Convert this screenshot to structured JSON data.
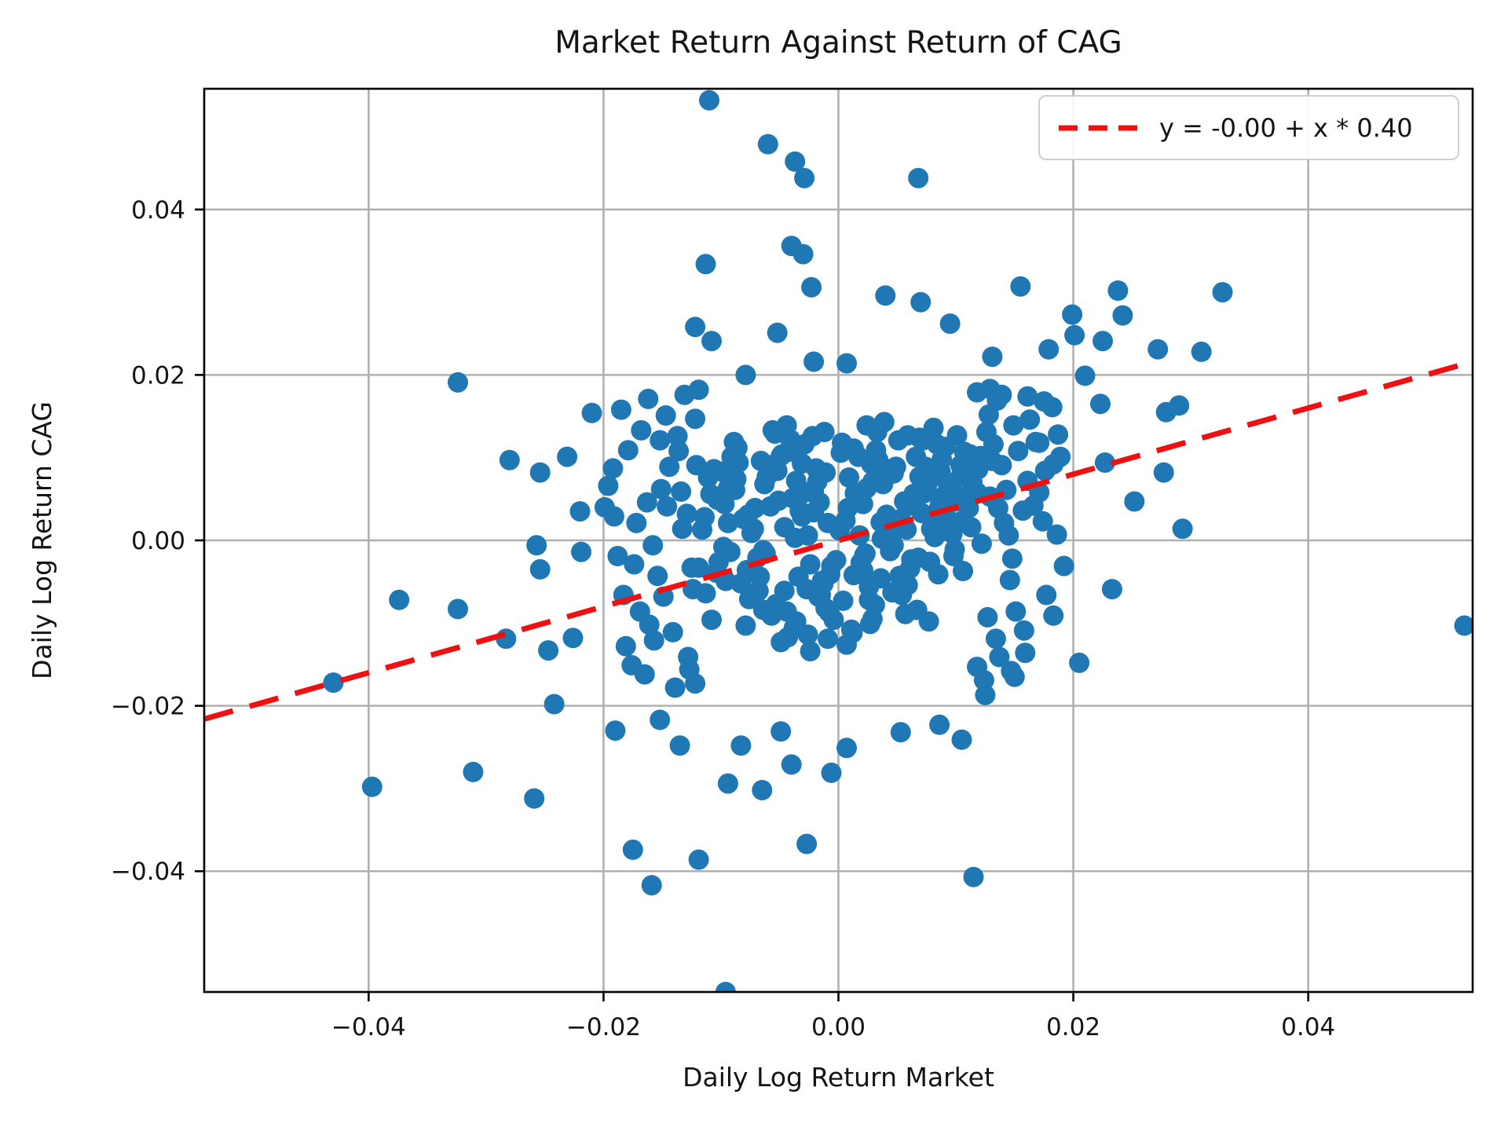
{
  "chart_data": {
    "type": "scatter",
    "title": "Market Return Against Return of CAG",
    "xlabel": "Daily Log Return Market",
    "ylabel": "Daily Log Return CAG",
    "xlim": [
      -0.054,
      0.054
    ],
    "ylim": [
      -0.0546,
      0.0546
    ],
    "grid": true,
    "grid_color": "#b0b0b0",
    "spine_color": "#000000",
    "marker_color": "#1f77b4",
    "x_ticks": {
      "values": [
        -0.04,
        -0.02,
        0.0,
        0.02,
        0.04
      ],
      "labels": [
        "−0.04",
        "−0.02",
        "0.00",
        "0.02",
        "0.04"
      ]
    },
    "y_ticks": {
      "values": [
        0.04,
        0.02,
        0.0,
        -0.02,
        -0.04
      ],
      "labels": [
        "0.04",
        "0.02",
        "0.00",
        "−0.02",
        "−0.04"
      ]
    },
    "legend": {
      "position": "upper right",
      "label": "y = -0.00 + x * 0.40"
    },
    "trendline": {
      "intercept": -0.0,
      "slope": 0.4,
      "color": "#ed1111",
      "style": "dashed"
    },
    "points": [
      [
        -0.011,
        0.0532
      ],
      [
        -0.006,
        0.0479
      ],
      [
        -0.0037,
        0.0458
      ],
      [
        -0.0029,
        0.0438
      ],
      [
        0.0068,
        0.0438
      ],
      [
        -0.004,
        0.0356
      ],
      [
        -0.003,
        0.0346
      ],
      [
        -0.0113,
        0.0334
      ],
      [
        -0.0023,
        0.0306
      ],
      [
        0.004,
        0.0296
      ],
      [
        0.007,
        0.0288
      ],
      [
        0.0155,
        0.0307
      ],
      [
        0.0238,
        0.0302
      ],
      [
        0.0327,
        0.03
      ],
      [
        0.0199,
        0.0273
      ],
      [
        0.0242,
        0.0272
      ],
      [
        -0.0122,
        0.0258
      ],
      [
        -0.0108,
        0.0241
      ],
      [
        -0.0052,
        0.0251
      ],
      [
        0.0095,
        0.0262
      ],
      [
        0.0201,
        0.0248
      ],
      [
        0.0225,
        0.0241
      ],
      [
        0.0179,
        0.0231
      ],
      [
        0.0272,
        0.0231
      ],
      [
        0.0309,
        0.0228
      ],
      [
        -0.0021,
        0.0216
      ],
      [
        0.0007,
        0.0214
      ],
      [
        0.0131,
        0.0222
      ],
      [
        0.021,
        0.0199
      ],
      [
        -0.0324,
        0.0191
      ],
      [
        -0.0079,
        0.02
      ],
      [
        0.0136,
        0.0176
      ],
      [
        0.0161,
        0.0174
      ],
      [
        0.0118,
        0.0179
      ],
      [
        0.0175,
        0.0168
      ],
      [
        0.0223,
        0.0165
      ],
      [
        0.0279,
        0.0155
      ],
      [
        0.029,
        0.0163
      ],
      [
        0.0171,
        0.0118
      ],
      [
        0.0227,
        0.0094
      ],
      [
        0.0277,
        0.0082
      ],
      [
        0.0293,
        0.0014
      ],
      [
        0.0252,
        0.0047
      ],
      [
        0.0233,
        -0.0059
      ],
      [
        0.0205,
        -0.0148
      ],
      [
        0.0183,
        -0.0091
      ],
      [
        0.015,
        -0.0165
      ],
      [
        0.0118,
        -0.0153
      ],
      [
        0.0125,
        -0.0187
      ],
      [
        0.0533,
        -0.0103
      ],
      [
        -0.043,
        -0.0172
      ],
      [
        -0.0397,
        -0.0298
      ],
      [
        -0.0311,
        -0.028
      ],
      [
        -0.0259,
        -0.0312
      ],
      [
        -0.0374,
        -0.0072
      ],
      [
        -0.0324,
        -0.0083
      ],
      [
        -0.0283,
        -0.0119
      ],
      [
        -0.028,
        0.0097
      ],
      [
        -0.0254,
        0.0082
      ],
      [
        -0.0257,
        -0.0006
      ],
      [
        -0.0254,
        -0.0035
      ],
      [
        -0.0242,
        -0.0198
      ],
      [
        -0.0247,
        -0.0133
      ],
      [
        -0.0226,
        -0.0118
      ],
      [
        -0.0219,
        -0.0014
      ],
      [
        -0.022,
        0.0035
      ],
      [
        -0.0199,
        0.004
      ],
      [
        -0.019,
        -0.023
      ],
      [
        -0.021,
        0.0154
      ],
      [
        -0.0231,
        0.0101
      ],
      [
        -0.0175,
        -0.0374
      ],
      [
        -0.0119,
        -0.0386
      ],
      [
        -0.0159,
        -0.0417
      ],
      [
        -0.0096,
        -0.0546
      ],
      [
        -0.0027,
        -0.0367
      ],
      [
        0.0115,
        -0.0407
      ],
      [
        -0.0135,
        -0.0248
      ],
      [
        -0.0094,
        -0.0294
      ],
      [
        -0.0065,
        -0.0302
      ],
      [
        -0.004,
        -0.0271
      ],
      [
        -0.0006,
        -0.0281
      ],
      [
        0.0007,
        -0.0251
      ],
      [
        -0.0083,
        -0.0248
      ],
      [
        -0.0049,
        -0.0231
      ],
      [
        0.0053,
        -0.0232
      ],
      [
        -0.0152,
        -0.0217
      ],
      [
        0.0086,
        -0.0223
      ],
      [
        -0.0122,
        -0.0173
      ],
      [
        -0.0165,
        -0.0162
      ],
      [
        0.0105,
        -0.0241
      ],
      [
        -0.0151,
        0.0062
      ],
      [
        0.0139,
        0.0091
      ],
      [
        -0.0128,
        -0.0141
      ],
      [
        0.0146,
        -0.0048
      ],
      [
        -0.0172,
        0.0021
      ],
      [
        0.0128,
        0.0152
      ],
      [
        -0.0136,
        0.0108
      ],
      [
        0.0157,
        0.0036
      ],
      [
        -0.0183,
        -0.0066
      ],
      [
        0.0134,
        -0.0119
      ],
      [
        -0.0147,
        0.0151
      ],
      [
        0.0168,
        0.0119
      ],
      [
        -0.0161,
        -0.0102
      ],
      [
        0.0143,
        0.0061
      ],
      [
        -0.0129,
        0.0032
      ],
      [
        0.0176,
        0.0084
      ],
      [
        -0.0192,
        0.0087
      ],
      [
        0.0151,
        -0.0086
      ],
      [
        -0.0139,
        -0.0178
      ],
      [
        0.0129,
        0.0183
      ],
      [
        -0.0168,
        0.0133
      ],
      [
        0.0186,
        0.0007
      ],
      [
        -0.0154,
        -0.0043
      ],
      [
        0.0132,
        0.0116
      ],
      [
        -0.0176,
        -0.0151
      ],
      [
        0.0163,
        0.0146
      ],
      [
        -0.0131,
        0.0176
      ],
      [
        0.0148,
        -0.0022
      ],
      [
        -0.0188,
        -0.0019
      ],
      [
        0.0171,
        0.0058
      ],
      [
        -0.0144,
        0.0089
      ],
      [
        0.0137,
        -0.0141
      ],
      [
        -0.0163,
        0.0046
      ],
      [
        0.0182,
        0.0161
      ],
      [
        -0.0149,
        -0.0068
      ],
      [
        0.0126,
        0.0131
      ],
      [
        -0.0179,
        0.0109
      ],
      [
        0.0158,
        -0.0109
      ],
      [
        -0.0133,
        0.0014
      ],
      [
        0.0189,
        0.0101
      ],
      [
        -0.0157,
        -0.0121
      ],
      [
        0.0141,
        0.0021
      ],
      [
        -0.0185,
        0.0158
      ],
      [
        0.0177,
        -0.0066
      ],
      [
        -0.0125,
        -0.0033
      ],
      [
        0.0153,
        0.0108
      ],
      [
        -0.0169,
        -0.0086
      ],
      [
        0.0135,
        0.0169
      ],
      [
        -0.0122,
        0.0147
      ],
      [
        0.0166,
        0.0042
      ],
      [
        -0.0141,
        -0.0111
      ],
      [
        0.0124,
        -0.0169
      ],
      [
        -0.0196,
        0.0066
      ],
      [
        0.0187,
        0.0128
      ],
      [
        -0.0152,
        0.0121
      ],
      [
        0.0145,
        0.0006
      ],
      [
        -0.0134,
        0.0059
      ],
      [
        0.0159,
        -0.0136
      ],
      [
        -0.0174,
        -0.0029
      ],
      [
        0.0131,
        0.0096
      ],
      [
        -0.0127,
        -0.0156
      ],
      [
        0.0174,
        0.0023
      ],
      [
        -0.0162,
        0.0171
      ],
      [
        0.0149,
        0.0139
      ],
      [
        -0.0119,
        0.0182
      ],
      [
        0.0192,
        -0.0031
      ],
      [
        -0.0146,
        0.0041
      ],
      [
        0.0127,
        -0.0093
      ],
      [
        -0.0181,
        -0.0128
      ],
      [
        0.0139,
        0.0176
      ],
      [
        -0.0124,
        -0.0059
      ],
      [
        0.0161,
        0.0072
      ],
      [
        -0.0137,
        0.0126
      ],
      [
        0.0129,
        0.0053
      ],
      [
        -0.0158,
        -0.0006
      ],
      [
        0.0183,
        0.0092
      ],
      [
        -0.0121,
        0.0091
      ],
      [
        0.0147,
        -0.0158
      ],
      [
        -0.0191,
        0.0029
      ],
      [
        0.0136,
        0.0039
      ],
      [
        -0.0021,
        0.0034
      ],
      [
        0.0013,
        -0.0042
      ],
      [
        0.0047,
        0.0081
      ],
      [
        -0.0064,
        -0.0012
      ],
      [
        0.0032,
        0.0109
      ],
      [
        -0.0008,
        -0.0087
      ],
      [
        0.0091,
        0.0036
      ],
      [
        -0.0113,
        -0.0064
      ],
      [
        0.0058,
        0.0013
      ],
      [
        -0.0036,
        0.0072
      ],
      [
        0.0104,
        0.0091
      ],
      [
        -0.0079,
        -0.0103
      ],
      [
        0.0022,
        -0.0018
      ],
      [
        0.0069,
        0.0124
      ],
      [
        -0.0051,
        0.0048
      ],
      [
        0.0007,
        -0.0126
      ],
      [
        -0.0094,
        0.0021
      ],
      [
        0.0118,
        0.0058
      ],
      [
        -0.0027,
        -0.0059
      ],
      [
        0.0043,
        0.0027
      ],
      [
        -0.0066,
        0.0096
      ],
      [
        0.0085,
        -0.0041
      ],
      [
        -0.0012,
        0.0131
      ],
      [
        0.0029,
        -0.0095
      ],
      [
        0.0076,
        0.0069
      ],
      [
        -0.0102,
        -0.0026
      ],
      [
        0.0016,
        0.0052
      ],
      [
        -0.0043,
        -0.0117
      ],
      [
        0.0097,
        0.0008
      ],
      [
        -0.0019,
        0.0087
      ],
      [
        0.0054,
        -0.0066
      ],
      [
        -0.0071,
        0.0039
      ],
      [
        0.0121,
        0.0102
      ],
      [
        -0.0034,
        -0.0044
      ],
      [
        0.0003,
        0.0118
      ],
      [
        0.0062,
        -0.0023
      ],
      [
        -0.0088,
        0.0061
      ],
      [
        0.0039,
        0.0143
      ],
      [
        -0.0057,
        -0.0091
      ],
      [
        0.0109,
        0.0049
      ],
      [
        -0.0006,
        -0.0031
      ],
      [
        0.0084,
        0.0116
      ],
      [
        -0.0116,
        0.0013
      ],
      [
        0.0026,
        -0.0072
      ],
      [
        0.0071,
        0.0033
      ],
      [
        -0.0048,
        0.0104
      ],
      [
        0.0011,
        -0.0108
      ],
      [
        -0.0083,
        -0.0052
      ],
      [
        0.0049,
        0.0089
      ],
      [
        -0.0024,
        -0.0134
      ],
      [
        0.0093,
        0.0024
      ],
      [
        -0.0061,
        0.0077
      ],
      [
        0.0018,
        0.0006
      ],
      [
        0.0106,
        -0.0037
      ],
      [
        -0.0041,
        0.0122
      ],
      [
        0.0067,
        -0.0084
      ],
      [
        -0.0097,
        0.0044
      ],
      [
        0.0034,
        0.0097
      ],
      [
        -0.0014,
        -0.0049
      ],
      [
        0.0081,
        0.0136
      ],
      [
        -0.0069,
        -0.0021
      ],
      [
        0.0024,
        0.0063
      ],
      [
        -0.0108,
        -0.0096
      ],
      [
        0.0052,
        0.0017
      ],
      [
        0.0002,
        0.0106
      ],
      [
        -0.0053,
        -0.0077
      ],
      [
        0.0114,
        0.0071
      ],
      [
        -0.0031,
        0.0029
      ],
      [
        0.0059,
        -0.0054
      ],
      [
        -0.0086,
        0.0112
      ],
      [
        0.0037,
        0.0002
      ],
      [
        -0.0009,
        -0.0119
      ],
      [
        0.0089,
        0.0053
      ],
      [
        -0.0044,
        0.0139
      ],
      [
        0.0021,
        -0.0036
      ],
      [
        -0.0074,
        0.0009
      ],
      [
        0.0101,
        0.0127
      ],
      [
        -0.0017,
        -0.0068
      ],
      [
        0.0063,
        0.0042
      ],
      [
        -0.0099,
        0.0083
      ],
      [
        0.0044,
        -0.0013
      ],
      [
        -0.0028,
        0.0058
      ],
      [
        0.0077,
        -0.0098
      ],
      [
        -0.0056,
        0.0133
      ],
      [
        0.0009,
        0.0076
      ],
      [
        0.0096,
        0.0011
      ],
      [
        -0.0038,
        -0.0106
      ],
      [
        0.0028,
        0.0092
      ],
      [
        -0.0081,
        0.0026
      ],
      [
        0.0051,
        0.0121
      ],
      [
        -0.0011,
        -0.0082
      ],
      [
        0.0111,
        0.0039
      ],
      [
        -0.0063,
        0.0068
      ],
      [
        0.0019,
        -0.0027
      ],
      [
        -0.0091,
        0.0101
      ],
      [
        0.0073,
        0.0057
      ],
      [
        -0.0026,
        -0.0114
      ],
      [
        0.0041,
        0.0031
      ],
      [
        -0.0104,
        -0.0039
      ],
      [
        0.0087,
        0.0083
      ],
      [
        -0.0046,
        0.0016
      ],
      [
        0.0013,
        0.0111
      ],
      [
        -0.0068,
        -0.0061
      ],
      [
        0.0103,
        0.0022
      ],
      [
        0.0031,
        -0.0078
      ],
      [
        -0.0016,
        0.0046
      ],
      [
        0.0066,
        0.0101
      ],
      [
        -0.0092,
        -0.0014
      ],
      [
        0.0006,
        0.0024
      ],
      [
        0.0119,
        0.0086
      ],
      [
        -0.0049,
        -0.0123
      ],
      [
        0.0082,
        0.0004
      ],
      [
        -0.0059,
        0.0091
      ],
      [
        0.0036,
        -0.0046
      ],
      [
        -0.0022,
        0.0126
      ],
      [
        0.0094,
        0.0061
      ],
      [
        -0.0078,
        -0.0036
      ],
      [
        0.0048,
        0.0019
      ],
      [
        -0.0004,
        -0.0096
      ],
      [
        0.0107,
        0.0107
      ],
      [
        -0.0037,
        0.0003
      ],
      [
        0.0078,
        -0.0026
      ],
      [
        -0.0109,
        0.0056
      ],
      [
        0.0024,
        0.0139
      ],
      [
        -0.0064,
        -0.0084
      ],
      [
        0.0056,
        0.0047
      ],
      [
        -0.0018,
        0.0071
      ],
      [
        0.0099,
        -0.0011
      ],
      [
        0.0014,
        0.0057
      ],
      [
        -0.0089,
        0.0119
      ],
      [
        0.0046,
        -0.0063
      ],
      [
        -0.0033,
        0.0036
      ],
      [
        0.0116,
        0.0094
      ],
      [
        -0.0007,
        -0.0041
      ],
      [
        0.0069,
        0.0077
      ],
      [
        -0.0114,
        0.0028
      ],
      [
        0.0027,
        -0.0101
      ],
      [
        0.0083,
        0.0031
      ],
      [
        -0.0052,
        0.0084
      ],
      [
        0.0001,
        0.0012
      ],
      [
        -0.0076,
        -0.0071
      ],
      [
        0.0108,
        0.0053
      ],
      [
        -0.0029,
        0.0116
      ],
      [
        0.0061,
        -0.0034
      ],
      [
        -0.0098,
        -0.0008
      ],
      [
        0.0038,
        0.0068
      ],
      [
        -0.0013,
        -0.0053
      ],
      [
        0.0091,
        0.0113
      ],
      [
        -0.0058,
        0.0041
      ],
      [
        0.0023,
        -0.0016
      ],
      [
        -0.0085,
        0.0094
      ],
      [
        0.0053,
        0.0026
      ],
      [
        0.0004,
        -0.0073
      ],
      [
        -0.0042,
        0.0107
      ],
      [
        0.0113,
        0.0016
      ],
      [
        -0.0024,
        -0.0029
      ],
      [
        0.0074,
        0.0089
      ],
      [
        -0.0103,
        0.0049
      ],
      [
        0.0033,
        0.0131
      ],
      [
        -0.0067,
        -0.0044
      ],
      [
        0.0096,
        0.0066
      ],
      [
        -0.0009,
        0.0021
      ],
      [
        0.0057,
        -0.0089
      ],
      [
        -0.0087,
        0.0074
      ],
      [
        0.0017,
        0.0101
      ],
      [
        0.0122,
        -0.0004
      ],
      [
        -0.0046,
        -0.0061
      ],
      [
        0.0086,
        0.0041
      ],
      [
        -0.0031,
        0.0093
      ],
      [
        0.0043,
        0.0009
      ],
      [
        -0.0119,
        -0.0033
      ],
      [
        0.0072,
        0.0121
      ],
      [
        -0.0002,
        -0.0024
      ],
      [
        0.0104,
        0.0077
      ],
      [
        -0.0072,
        0.0014
      ],
      [
        0.0026,
        -0.0056
      ],
      [
        -0.0054,
        0.0129
      ],
      [
        0.0098,
        -0.0019
      ],
      [
        -0.0036,
        -0.0098
      ],
      [
        0.0064,
        0.0056
      ],
      [
        -0.0011,
        0.0082
      ],
      [
        0.0047,
        -0.0006
      ],
      [
        -0.0094,
        0.0063
      ],
      [
        0.0112,
        0.0104
      ],
      [
        0.0008,
        0.0039
      ],
      [
        -0.0062,
        -0.0016
      ],
      [
        0.0088,
        0.0098
      ],
      [
        -0.0021,
        0.0059
      ],
      [
        0.0052,
        -0.0043
      ],
      [
        -0.0106,
        0.0086
      ],
      [
        0.0036,
        0.0022
      ],
      [
        -0.0044,
        -0.0086
      ],
      [
        0.0079,
        0.0014
      ],
      [
        -0.0015,
        -0.0066
      ],
      [
        0.0102,
        0.0047
      ],
      [
        -0.0049,
        0.0102
      ],
      [
        0.0029,
        0.0071
      ],
      [
        -0.0096,
        -0.0049
      ],
      [
        0.0059,
        0.0127
      ],
      [
        -0.0026,
        0.0006
      ],
      [
        0.0041,
        0.0086
      ],
      [
        -0.0077,
        0.0031
      ],
      [
        0.0012,
        -0.0112
      ],
      [
        0.0093,
        0.0069
      ],
      [
        -0.0039,
        0.0051
      ],
      [
        0.0068,
        -0.0021
      ],
      [
        -0.0111,
        0.0076
      ],
      [
        0.0021,
        0.0044
      ]
    ]
  }
}
